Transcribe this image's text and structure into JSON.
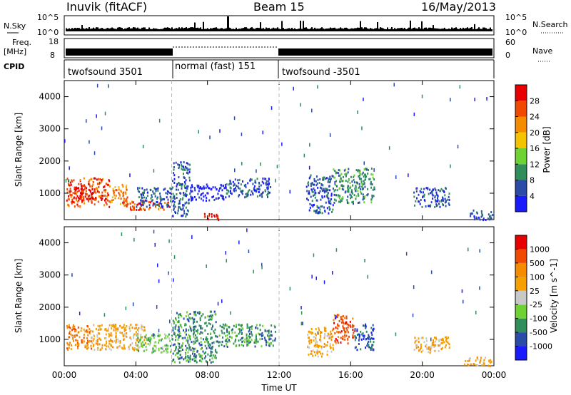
{
  "header": {
    "station": "Inuvik (fitACF)",
    "beam": "Beam 15",
    "date": "16/May/2013"
  },
  "side_labels": {
    "nsky": "N.Sky",
    "freq_line1": "Freq.",
    "freq_line2": "[MHz]",
    "cpid": "CPID",
    "nsearch": "N.Search",
    "nave": "Nave"
  },
  "scales": {
    "nsky_ticks": [
      "10^5",
      "10^0"
    ],
    "nsearch_ticks": [
      "10^5",
      "10^0"
    ],
    "freq_ticks": [
      "18",
      "8"
    ],
    "nave_ticks": [
      "60",
      "0"
    ]
  },
  "cpid_segments": [
    {
      "label": "twofsound 3501",
      "start": 0,
      "end": 6
    },
    {
      "label": "normal (fast) 151",
      "start": 6,
      "end": 12
    },
    {
      "label": "twofsound -3501",
      "start": 12,
      "end": 24
    }
  ],
  "colors": {
    "power_scale": [
      "#1a1aff",
      "#2b4ba8",
      "#2f8e5a",
      "#6ed232",
      "#f5c400",
      "#f58c00",
      "#f04a00",
      "#e80000"
    ],
    "velocity_scale": [
      "#1a1aff",
      "#2b4ba8",
      "#2f8e5a",
      "#6ed232",
      "#c8c8c8",
      "#f5a000",
      "#f58c00",
      "#f04a00",
      "#e80000"
    ],
    "tick_color": "#000000",
    "divider_color": "#bbbbbb"
  },
  "colorbars": {
    "power": {
      "label": "Power [dB]",
      "ticks": [
        "28",
        "24",
        "20",
        "16",
        "12",
        "8",
        "4"
      ]
    },
    "velocity": {
      "label": "Velocity [m s^-1]",
      "ticks": [
        "1000",
        "500",
        "100",
        "25",
        "-25",
        "-100",
        "-500",
        "-1000"
      ]
    }
  },
  "chart_data": [
    {
      "type": "heatmap",
      "panel": "power",
      "ylabel": "Slant Range [km]",
      "xlim": [
        0,
        24
      ],
      "ylim": [
        180,
        4500
      ],
      "y_ticks": [
        1000,
        2000,
        3000,
        4000
      ],
      "x_ticks": [
        "00:00",
        "04:00",
        "08:00",
        "12:00",
        "16:00",
        "20:00",
        "00:00"
      ],
      "regions": [
        {
          "t0": 0.1,
          "t1": 2.5,
          "r0": 600,
          "r1": 1500,
          "level": 6
        },
        {
          "t0": 0.5,
          "t1": 1.8,
          "r0": 800,
          "r1": 1200,
          "level": 7
        },
        {
          "t0": 2.5,
          "t1": 3.5,
          "r0": 700,
          "r1": 1300,
          "level": 5
        },
        {
          "t0": 3.2,
          "t1": 5.8,
          "r0": 500,
          "r1": 800,
          "level": 6
        },
        {
          "t0": 4.0,
          "t1": 6.0,
          "r0": 600,
          "r1": 1200,
          "level": 1
        },
        {
          "t0": 6.0,
          "t1": 7.0,
          "r0": 300,
          "r1": 2000,
          "level": 1
        },
        {
          "t0": 7.0,
          "t1": 9.0,
          "r0": 800,
          "r1": 1300,
          "level": 0
        },
        {
          "t0": 7.8,
          "t1": 8.6,
          "r0": 200,
          "r1": 400,
          "level": 7
        },
        {
          "t0": 9.0,
          "t1": 11.5,
          "r0": 900,
          "r1": 1500,
          "level": 1
        },
        {
          "t0": 13.5,
          "t1": 15.0,
          "r0": 400,
          "r1": 1600,
          "level": 1
        },
        {
          "t0": 15.0,
          "t1": 17.3,
          "r0": 700,
          "r1": 1800,
          "level": 2
        },
        {
          "t0": 19.5,
          "t1": 21.5,
          "r0": 600,
          "r1": 1200,
          "level": 1
        },
        {
          "t0": 22.5,
          "t1": 23.9,
          "r0": 200,
          "r1": 500,
          "level": 1
        }
      ]
    },
    {
      "type": "heatmap",
      "panel": "velocity",
      "ylabel": "Slant Range [km]",
      "xlabel": "Time UT",
      "xlim": [
        0,
        24
      ],
      "ylim": [
        180,
        4500
      ],
      "y_ticks": [
        1000,
        2000,
        3000,
        4000
      ],
      "x_ticks": [
        "00:00",
        "04:00",
        "08:00",
        "12:00",
        "16:00",
        "20:00",
        "00:00"
      ],
      "regions": [
        {
          "t0": 0.1,
          "t1": 1.5,
          "r0": 700,
          "r1": 1500,
          "level": 6
        },
        {
          "t0": 1.5,
          "t1": 4.5,
          "r0": 700,
          "r1": 1500,
          "level": 5
        },
        {
          "t0": 4.0,
          "t1": 6.0,
          "r0": 600,
          "r1": 1200,
          "level": 3
        },
        {
          "t0": 6.0,
          "t1": 8.5,
          "r0": 300,
          "r1": 1900,
          "level": 2
        },
        {
          "t0": 8.5,
          "t1": 11.8,
          "r0": 800,
          "r1": 1500,
          "level": 2
        },
        {
          "t0": 13.5,
          "t1": 15.0,
          "r0": 500,
          "r1": 1400,
          "level": 5
        },
        {
          "t0": 15.0,
          "t1": 16.2,
          "r0": 900,
          "r1": 1800,
          "level": 7
        },
        {
          "t0": 16.2,
          "t1": 17.3,
          "r0": 700,
          "r1": 1500,
          "level": 1
        },
        {
          "t0": 19.5,
          "t1": 21.5,
          "r0": 600,
          "r1": 1100,
          "level": 5
        },
        {
          "t0": 22.3,
          "t1": 23.9,
          "r0": 200,
          "r1": 500,
          "level": 5
        }
      ]
    }
  ],
  "axis": {
    "xlabel": "Time UT",
    "ylabel": "Slant Range [km]"
  }
}
